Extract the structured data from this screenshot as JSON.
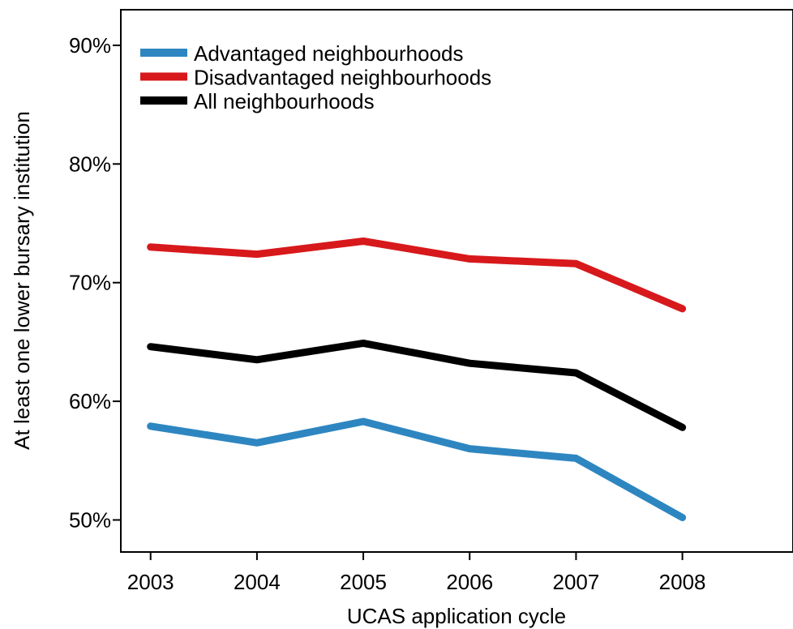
{
  "chart_data": {
    "type": "line",
    "title": "",
    "xlabel": "UCAS application cycle",
    "ylabel": "At least one lower bursary institution",
    "x": [
      2003,
      2004,
      2005,
      2006,
      2007,
      2008
    ],
    "x_tick_labels": [
      "2003",
      "2004",
      "2005",
      "2006",
      "2007",
      "2008"
    ],
    "y_ticks": [
      50,
      60,
      70,
      80,
      90
    ],
    "y_tick_labels": [
      "50%",
      "60%",
      "70%",
      "80%",
      "90%"
    ],
    "xlim": [
      2002.72,
      2009.04
    ],
    "ylim": [
      47.3,
      93.0
    ],
    "grid": false,
    "legend_position": "top-left",
    "series": [
      {
        "name": "Advantaged neighbourhoods",
        "color": "#2e86c1",
        "values": [
          57.9,
          56.5,
          58.3,
          56.0,
          55.2,
          50.2
        ]
      },
      {
        "name": "Disadvantaged neighbourhoods",
        "color": "#d7191c",
        "values": [
          73.0,
          72.4,
          73.5,
          72.0,
          71.6,
          67.8
        ]
      },
      {
        "name": "All neighbourhoods",
        "color": "#000000",
        "values": [
          64.6,
          63.5,
          64.9,
          63.2,
          62.4,
          57.8
        ]
      }
    ]
  }
}
